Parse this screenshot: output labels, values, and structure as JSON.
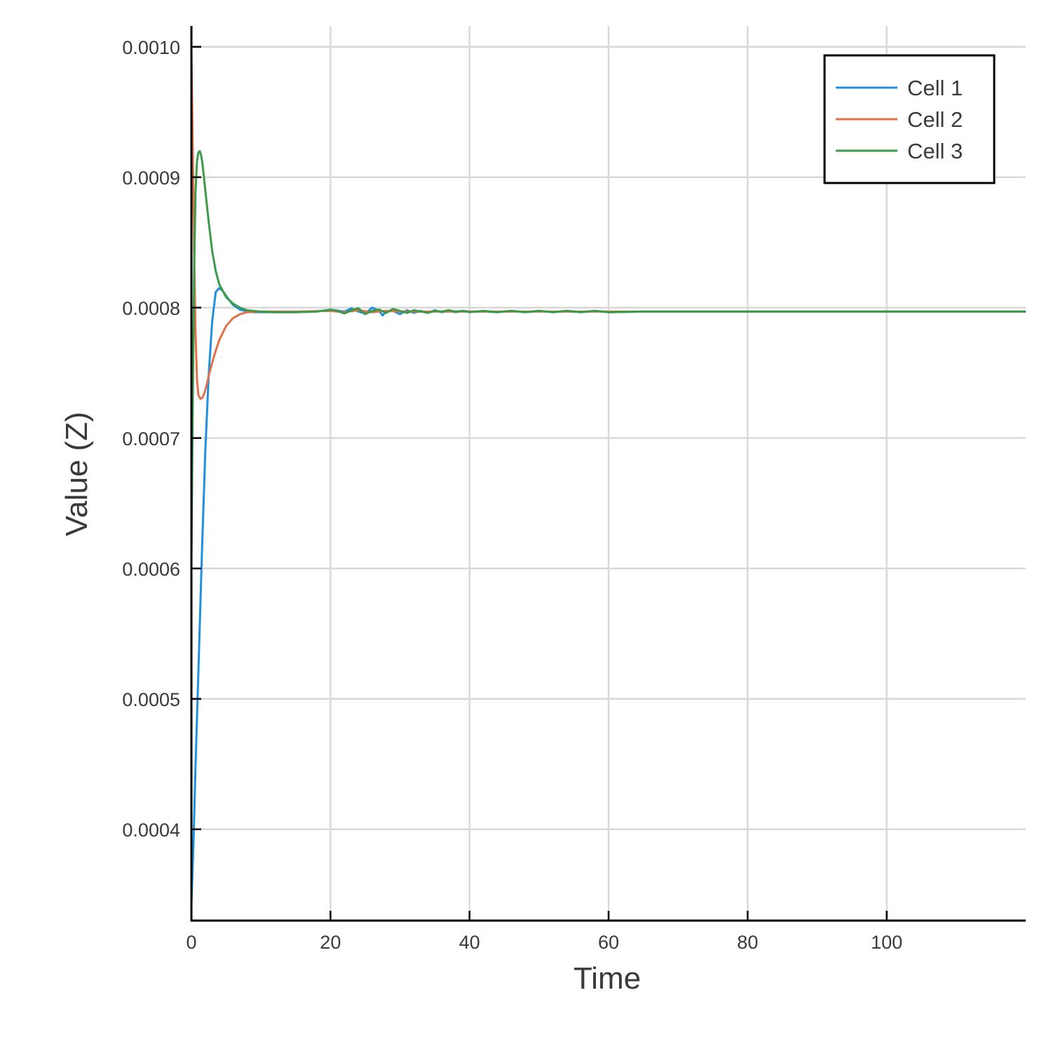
{
  "chart_data": {
    "type": "line",
    "xlabel": "Time",
    "ylabel": "Value (Z)",
    "xlim": [
      0,
      120
    ],
    "ylim": [
      0.00033,
      0.001016
    ],
    "x_ticks": [
      0,
      20,
      40,
      60,
      80,
      100
    ],
    "x_tick_labels": [
      "0",
      "20",
      "40",
      "60",
      "80",
      "100"
    ],
    "y_ticks": [
      0.0004,
      0.0005,
      0.0006,
      0.0007,
      0.0008,
      0.0009,
      0.001
    ],
    "y_tick_labels": [
      "0.0004",
      "0.0005",
      "0.0006",
      "0.0007",
      "0.0008",
      "0.0009",
      "0.0010"
    ],
    "grid": true,
    "legend_position": "top-right",
    "series": [
      {
        "name": "Cell 1",
        "color": "#1f8fe0",
        "x": [
          0,
          0.3,
          0.6,
          1,
          1.5,
          2,
          2.5,
          3,
          3.5,
          4,
          4.5,
          5,
          6,
          7,
          8,
          9,
          10,
          12,
          15,
          18,
          20,
          22,
          23,
          24,
          25,
          26,
          27,
          27.5,
          28,
          29,
          30,
          31,
          32,
          33,
          34,
          35,
          36,
          37,
          38,
          39,
          40,
          42,
          44,
          46,
          48,
          50,
          52,
          54,
          56,
          58,
          60,
          65,
          70,
          80,
          90,
          100,
          110,
          120
        ],
        "y": [
          0.000342,
          0.00039,
          0.00045,
          0.00052,
          0.00061,
          0.00069,
          0.00075,
          0.00079,
          0.000812,
          0.000815,
          0.000813,
          0.000809,
          0.000802,
          0.0007985,
          0.000797,
          0.0007965,
          0.0007965,
          0.0007965,
          0.0007965,
          0.000797,
          0.0007985,
          0.000797,
          0.0007995,
          0.000797,
          0.0007955,
          0.0008,
          0.0007975,
          0.000794,
          0.000797,
          0.0007975,
          0.000795,
          0.000798,
          0.000796,
          0.0007975,
          0.000796,
          0.000798,
          0.0007965,
          0.0007975,
          0.0007965,
          0.0007975,
          0.000797,
          0.000797,
          0.0007965,
          0.0007975,
          0.0007965,
          0.0007975,
          0.0007965,
          0.0007975,
          0.0007965,
          0.0007975,
          0.0007965,
          0.000797,
          0.000797,
          0.000797,
          0.000797,
          0.000797,
          0.000797,
          0.000797
        ]
      },
      {
        "name": "Cell 2",
        "color": "#e0714a",
        "x": [
          0,
          0.2,
          0.4,
          0.6,
          0.8,
          1,
          1.3,
          1.6,
          1.9,
          2.2,
          2.6,
          3,
          3.5,
          4,
          5,
          6,
          7,
          8,
          10,
          15,
          20,
          22,
          24,
          26,
          28,
          30,
          35,
          40,
          50,
          60,
          80,
          100,
          120
        ],
        "y": [
          0.000996,
          0.00092,
          0.00084,
          0.00078,
          0.000745,
          0.000733,
          0.00073,
          0.000731,
          0.000735,
          0.000741,
          0.00075,
          0.000758,
          0.000767,
          0.000775,
          0.000786,
          0.000792,
          0.000795,
          0.0007965,
          0.000797,
          0.000797,
          0.0007975,
          0.0007965,
          0.000798,
          0.0007965,
          0.0007975,
          0.000797,
          0.000797,
          0.000797,
          0.000797,
          0.000797,
          0.000797,
          0.000797,
          0.000797
        ]
      },
      {
        "name": "Cell 3",
        "color": "#3d9a4a",
        "x": [
          0,
          0.2,
          0.4,
          0.6,
          0.8,
          1,
          1.2,
          1.4,
          1.6,
          1.8,
          2,
          2.5,
          3,
          3.5,
          4,
          5,
          6,
          7,
          8,
          10,
          12,
          15,
          18,
          20,
          21,
          22,
          23,
          24,
          25,
          26,
          27,
          28,
          29,
          30,
          31,
          32,
          33,
          34,
          35,
          36,
          37,
          38,
          39,
          40,
          42,
          44,
          46,
          48,
          50,
          52,
          54,
          56,
          58,
          60,
          65,
          70,
          80,
          90,
          100,
          110,
          120
        ],
        "y": [
          0.000604,
          0.00073,
          0.00083,
          0.00089,
          0.000912,
          0.000919,
          0.00092,
          0.000917,
          0.00091,
          0.0009,
          0.00089,
          0.000865,
          0.000843,
          0.000828,
          0.000818,
          0.000808,
          0.000803,
          0.0008,
          0.000798,
          0.000797,
          0.0007965,
          0.0007965,
          0.000797,
          0.0007985,
          0.0007975,
          0.0007955,
          0.000798,
          0.0007995,
          0.000795,
          0.0007975,
          0.0007985,
          0.000796,
          0.000799,
          0.0007975,
          0.000796,
          0.000798,
          0.000797,
          0.000796,
          0.0007975,
          0.000797,
          0.000798,
          0.000797,
          0.0007975,
          0.0007965,
          0.0007975,
          0.0007965,
          0.0007975,
          0.0007965,
          0.0007975,
          0.0007965,
          0.0007975,
          0.0007965,
          0.0007975,
          0.0007965,
          0.000797,
          0.000797,
          0.000797,
          0.000797,
          0.000797,
          0.000797,
          0.000797
        ]
      }
    ]
  }
}
